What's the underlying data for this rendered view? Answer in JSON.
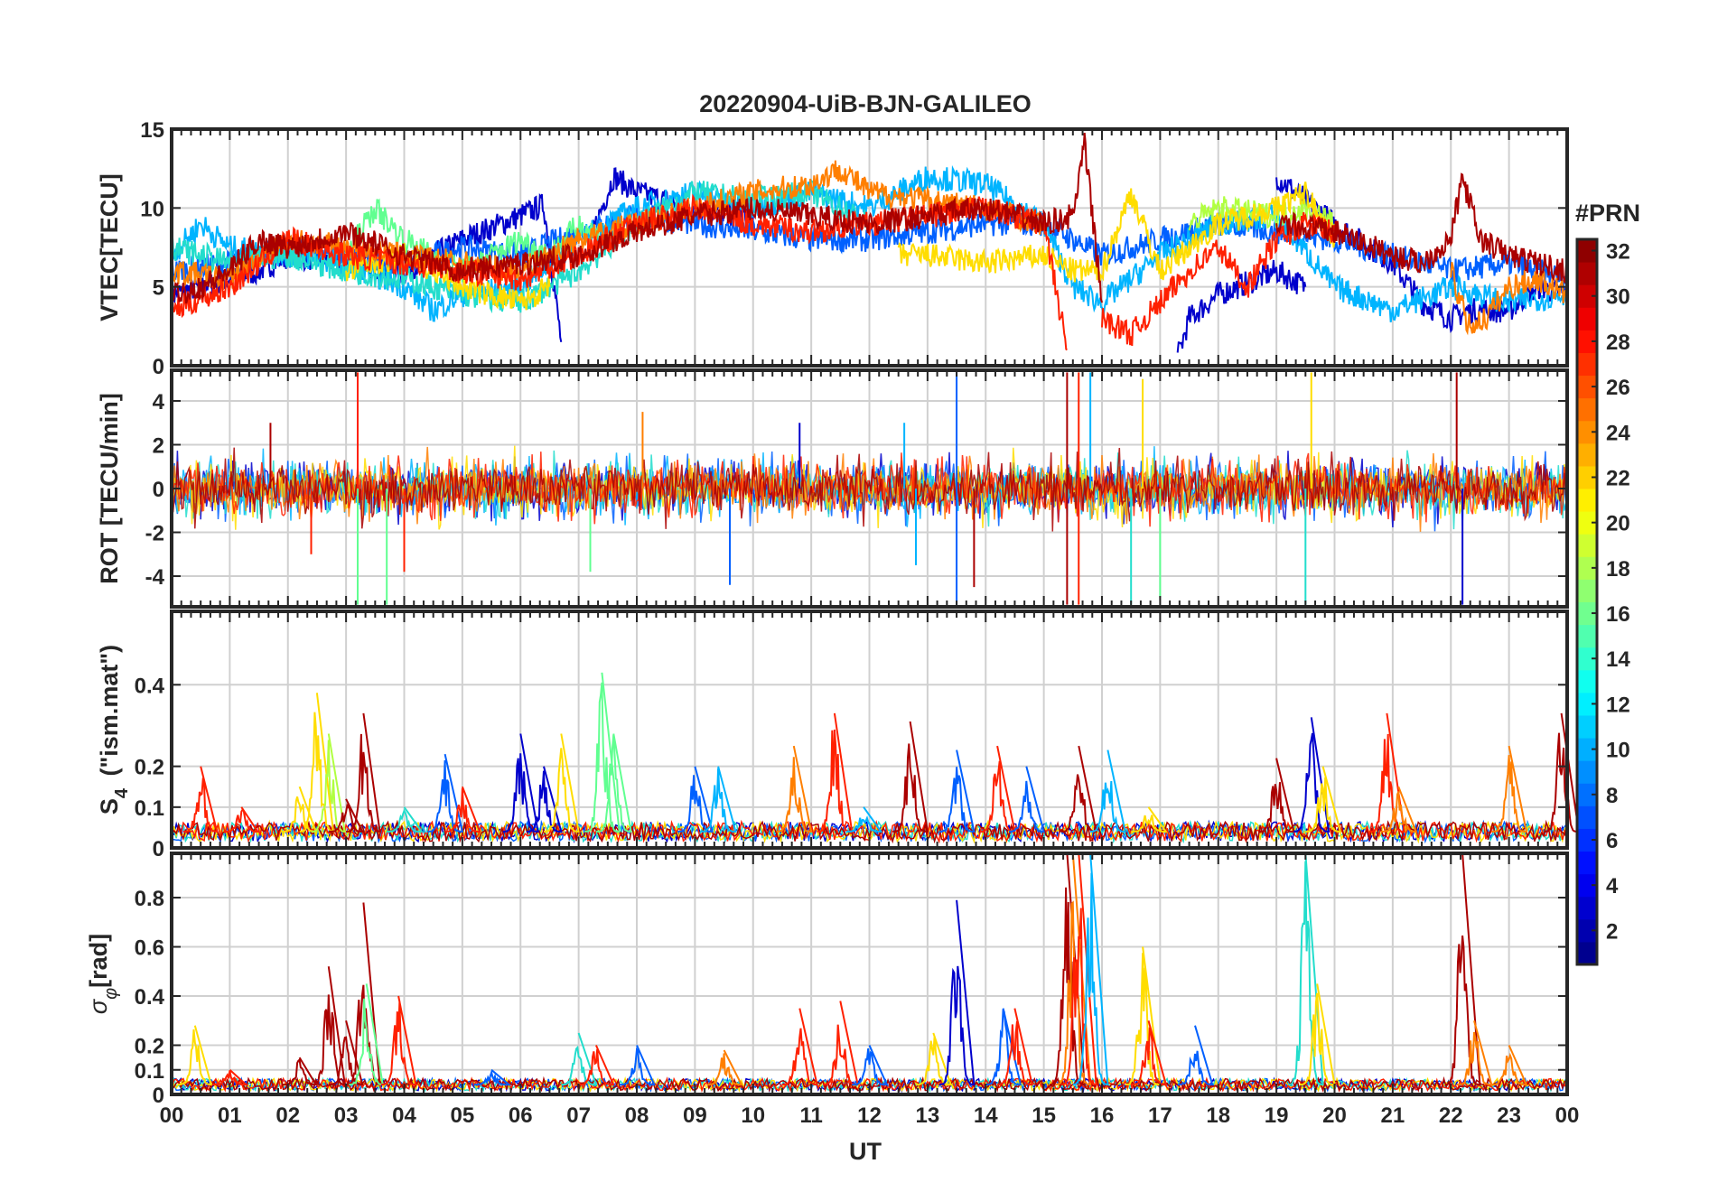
{
  "figure": {
    "title": "20220904-UiB-BJN-GALILEO",
    "x_axis_label": "UT",
    "x_tick_labels": [
      "00",
      "01",
      "02",
      "03",
      "04",
      "05",
      "06",
      "07",
      "08",
      "09",
      "10",
      "11",
      "12",
      "13",
      "14",
      "15",
      "16",
      "17",
      "18",
      "19",
      "20",
      "21",
      "22",
      "23",
      "00"
    ],
    "colorbar": {
      "label": "#PRN",
      "ticks": [
        "2",
        "4",
        "6",
        "8",
        "10",
        "12",
        "14",
        "16",
        "18",
        "20",
        "22",
        "24",
        "26",
        "28",
        "30",
        "32"
      ],
      "range": [
        1,
        32
      ],
      "colormap": "jet",
      "levels": 32
    }
  },
  "chart_data": [
    {
      "type": "line",
      "panel": "vtec",
      "ylabel": "VTEC[TECU]",
      "xlim": [
        0,
        24
      ],
      "ylim": [
        0,
        15
      ],
      "yticks": [
        0,
        5,
        10,
        15
      ],
      "ytick_labels": [
        "0",
        "5",
        "10",
        "15"
      ],
      "grid": true,
      "series": [
        {
          "prn": 3,
          "color": "#0000cc",
          "x": [
            0,
            0.5,
            1,
            1.5,
            2,
            3,
            4,
            5,
            6,
            6.4,
            6.7
          ],
          "y": [
            4.5,
            5,
            5.5,
            6,
            7,
            6.5,
            6,
            8,
            9.5,
            10.2,
            1.5
          ]
        },
        {
          "prn": 3,
          "color": "#0000cc",
          "x": [
            7.2,
            7.6,
            8,
            9,
            10
          ],
          "y": [
            8,
            12,
            11,
            10,
            9.5
          ]
        },
        {
          "prn": 3,
          "color": "#0000cc",
          "x": [
            17.3,
            17.5,
            18,
            19,
            19.5
          ],
          "y": [
            0.5,
            3,
            4.5,
            6,
            5
          ]
        },
        {
          "prn": 3,
          "color": "#0000cc",
          "x": [
            19,
            20,
            21,
            21.5,
            22,
            22.3,
            23,
            23.5,
            24
          ],
          "y": [
            12,
            9,
            6.5,
            4,
            3,
            3.5,
            3.5,
            5,
            4.5
          ]
        },
        {
          "prn": 7,
          "color": "#0060ff",
          "x": [
            0,
            1,
            2,
            3,
            4,
            5,
            6,
            7,
            8,
            9,
            10,
            11,
            12,
            13,
            14,
            15,
            15.5,
            16,
            17,
            18,
            19,
            20,
            21,
            22,
            23,
            24
          ],
          "y": [
            6,
            6.5,
            7.5,
            7,
            6.5,
            7.5,
            7,
            8.5,
            9.5,
            9,
            8.5,
            8,
            8,
            8.5,
            9,
            9,
            8,
            7,
            8,
            9,
            8.5,
            8,
            7,
            6,
            6.5,
            5.5
          ]
        },
        {
          "prn": 10,
          "color": "#00b4ff",
          "x": [
            0,
            0.5,
            1,
            2,
            3,
            4,
            4.5,
            5,
            6,
            7,
            8,
            9,
            10,
            11,
            12,
            13,
            14,
            15,
            15.5,
            16,
            17,
            18,
            19,
            20,
            21,
            22,
            23,
            24
          ],
          "y": [
            7,
            9,
            7.5,
            7,
            6.5,
            5,
            3.5,
            4.5,
            5,
            8,
            10,
            11,
            10,
            11,
            10,
            12,
            11.5,
            9,
            5,
            4,
            7,
            9,
            9.5,
            5,
            3.5,
            5,
            4,
            4.5
          ]
        },
        {
          "prn": 13,
          "color": "#22ddcc",
          "x": [
            0,
            1,
            2,
            3,
            4,
            5,
            6,
            7,
            8,
            9,
            10,
            11,
            12
          ],
          "y": [
            7.5,
            6.5,
            7,
            6,
            5.5,
            4.5,
            4,
            6,
            9,
            11,
            10.5,
            11,
            9
          ]
        },
        {
          "prn": 16,
          "color": "#60ff90",
          "x": [
            3,
            3.5,
            4,
            5,
            6,
            6.5,
            7,
            7.5
          ],
          "y": [
            7,
            10,
            8,
            6,
            8,
            7,
            9,
            8
          ]
        },
        {
          "prn": 18,
          "color": "#b0ff40",
          "x": [
            17.5,
            18,
            19,
            19.5,
            20
          ],
          "y": [
            9,
            10,
            9.5,
            10,
            9
          ]
        },
        {
          "prn": 20,
          "color": "#ffdd00",
          "x": [
            3,
            4,
            5,
            6,
            6.5
          ],
          "y": [
            6,
            7,
            5,
            4,
            5
          ]
        },
        {
          "prn": 20,
          "color": "#ffdd00",
          "x": [
            12.5,
            13,
            14,
            15,
            15.5,
            16,
            16.5,
            17,
            18,
            19,
            19.5,
            20
          ],
          "y": [
            7,
            7,
            6.5,
            7,
            6,
            6,
            11,
            6,
            9,
            10,
            11,
            8
          ]
        },
        {
          "prn": 24,
          "color": "#ff7f00",
          "x": [
            0,
            1,
            2,
            3,
            4,
            5,
            6,
            7,
            8,
            9,
            10,
            11,
            11.5,
            12,
            13,
            14,
            15
          ],
          "y": [
            6,
            5.5,
            8,
            7.5,
            7,
            6.5,
            6,
            8,
            9,
            10,
            11,
            11.5,
            12.5,
            11,
            10.5,
            10,
            9
          ]
        },
        {
          "prn": 24,
          "color": "#ff7f00",
          "x": [
            22,
            22.3,
            22.6,
            23,
            23.5,
            24
          ],
          "y": [
            6,
            2.5,
            3,
            5,
            5.5,
            4.5
          ]
        },
        {
          "prn": 28,
          "color": "#ff2000",
          "x": [
            0,
            1,
            2,
            3,
            4,
            5,
            6,
            7,
            8,
            9,
            10,
            11,
            12,
            13,
            14,
            15,
            15.4
          ],
          "y": [
            3.5,
            5,
            8,
            7,
            6.5,
            6,
            5.5,
            7,
            9,
            10,
            9,
            8.5,
            9,
            9.5,
            10,
            9,
            1
          ]
        },
        {
          "prn": 28,
          "color": "#ff2000",
          "x": [
            16,
            16.5,
            17,
            17.5,
            18,
            18.5,
            19,
            19.5,
            20
          ],
          "y": [
            3,
            2,
            4,
            6,
            7.5,
            5,
            8,
            9,
            8.5
          ]
        },
        {
          "prn": 31,
          "color": "#aa0000",
          "x": [
            0,
            0.5,
            1,
            1.5,
            2,
            3,
            4,
            5,
            6,
            7,
            8,
            9,
            10,
            11,
            12,
            13,
            14,
            15,
            15.5,
            15.7,
            16
          ],
          "y": [
            4.5,
            5,
            6,
            8,
            7.5,
            8.5,
            7,
            6,
            6.5,
            7,
            8.5,
            9.5,
            10,
            9.5,
            9,
            9.5,
            10,
            9,
            9.5,
            14,
            4
          ]
        },
        {
          "prn": 31,
          "color": "#aa0000",
          "x": [
            19,
            20,
            21,
            21.5,
            22,
            22.2,
            22.5,
            23,
            24
          ],
          "y": [
            9,
            8.5,
            7,
            6.5,
            8,
            12,
            8,
            7,
            6
          ]
        }
      ]
    },
    {
      "type": "line",
      "panel": "rot",
      "ylabel": "ROT [TECU/min]",
      "xlim": [
        0,
        24
      ],
      "ylim": [
        -5.4,
        5.4
      ],
      "yticks": [
        -4,
        -2,
        0,
        2,
        4
      ],
      "ytick_labels": [
        "-4",
        "-2",
        "0",
        "2",
        "4"
      ],
      "grid": true,
      "note": "dense noise around 0 for every PRN; spikes listed below",
      "spikes": [
        {
          "x": 1.7,
          "y": 3,
          "color": "#aa0000"
        },
        {
          "x": 2.4,
          "y": -3,
          "color": "#ff2000"
        },
        {
          "x": 3.2,
          "y": 5.3,
          "color": "#ff2000"
        },
        {
          "x": 3.2,
          "y": -5.3,
          "color": "#60ff90"
        },
        {
          "x": 3.7,
          "y": -5.3,
          "color": "#60ff90"
        },
        {
          "x": 4.0,
          "y": -3.8,
          "color": "#ff2000"
        },
        {
          "x": 7.2,
          "y": -3.8,
          "color": "#60ff90"
        },
        {
          "x": 8.1,
          "y": 3.5,
          "color": "#ff7f00"
        },
        {
          "x": 9.6,
          "y": -4.4,
          "color": "#0060ff"
        },
        {
          "x": 10.8,
          "y": 3,
          "color": "#0000cc"
        },
        {
          "x": 12.6,
          "y": 3,
          "color": "#00b4ff"
        },
        {
          "x": 12.8,
          "y": -3.5,
          "color": "#00b4ff"
        },
        {
          "x": 13.5,
          "y": 5.3,
          "color": "#0060ff"
        },
        {
          "x": 13.5,
          "y": -5.3,
          "color": "#0060ff"
        },
        {
          "x": 13.8,
          "y": -4.5,
          "color": "#aa0000"
        },
        {
          "x": 15.4,
          "y": 5.3,
          "color": "#aa0000"
        },
        {
          "x": 15.4,
          "y": -5.3,
          "color": "#aa0000"
        },
        {
          "x": 15.6,
          "y": 5.3,
          "color": "#ff2000"
        },
        {
          "x": 15.6,
          "y": -5.3,
          "color": "#ff2000"
        },
        {
          "x": 15.8,
          "y": 5.3,
          "color": "#00b4ff"
        },
        {
          "x": 16.5,
          "y": -5.3,
          "color": "#22ddcc"
        },
        {
          "x": 16.7,
          "y": 5,
          "color": "#ffdd00"
        },
        {
          "x": 17.0,
          "y": -5,
          "color": "#60ff90"
        },
        {
          "x": 19.5,
          "y": -5.3,
          "color": "#22ddcc"
        },
        {
          "x": 19.6,
          "y": 5.3,
          "color": "#ffdd00"
        },
        {
          "x": 22.1,
          "y": 5.3,
          "color": "#aa0000"
        },
        {
          "x": 22.2,
          "y": -5.3,
          "color": "#0000cc"
        }
      ]
    },
    {
      "type": "line",
      "panel": "s4",
      "ylabel": "S4 (\"ism.mat\")",
      "xlim": [
        0,
        24
      ],
      "ylim": [
        0,
        0.58
      ],
      "yticks": [
        0,
        0.1,
        0.2,
        0.4
      ],
      "ytick_labels": [
        "0",
        "0.1",
        "0.2",
        "0.4"
      ],
      "grid": true,
      "bursts": [
        {
          "x": 0.5,
          "y": 0.2,
          "color": "#ff2000"
        },
        {
          "x": 1.2,
          "y": 0.1,
          "color": "#ff2000"
        },
        {
          "x": 2.2,
          "y": 0.15,
          "color": "#ffdd00"
        },
        {
          "x": 2.5,
          "y": 0.38,
          "color": "#ffdd00"
        },
        {
          "x": 2.7,
          "y": 0.28,
          "color": "#b0ff40"
        },
        {
          "x": 3.0,
          "y": 0.12,
          "color": "#aa0000"
        },
        {
          "x": 3.3,
          "y": 0.33,
          "color": "#aa0000"
        },
        {
          "x": 4.0,
          "y": 0.1,
          "color": "#22ddcc"
        },
        {
          "x": 4.7,
          "y": 0.23,
          "color": "#0060ff"
        },
        {
          "x": 5.0,
          "y": 0.15,
          "color": "#ff2000"
        },
        {
          "x": 6.0,
          "y": 0.28,
          "color": "#0000cc"
        },
        {
          "x": 6.4,
          "y": 0.2,
          "color": "#0000cc"
        },
        {
          "x": 6.7,
          "y": 0.28,
          "color": "#ffdd00"
        },
        {
          "x": 7.4,
          "y": 0.43,
          "color": "#60ff90"
        },
        {
          "x": 7.6,
          "y": 0.28,
          "color": "#60ff90"
        },
        {
          "x": 9.0,
          "y": 0.2,
          "color": "#0060ff"
        },
        {
          "x": 9.4,
          "y": 0.2,
          "color": "#00b4ff"
        },
        {
          "x": 10.7,
          "y": 0.25,
          "color": "#ff7f00"
        },
        {
          "x": 11.4,
          "y": 0.33,
          "color": "#ff2000"
        },
        {
          "x": 11.9,
          "y": 0.1,
          "color": "#00b4ff"
        },
        {
          "x": 12.7,
          "y": 0.31,
          "color": "#aa0000"
        },
        {
          "x": 13.5,
          "y": 0.24,
          "color": "#0060ff"
        },
        {
          "x": 14.2,
          "y": 0.25,
          "color": "#ff2000"
        },
        {
          "x": 14.7,
          "y": 0.2,
          "color": "#0060ff"
        },
        {
          "x": 15.6,
          "y": 0.25,
          "color": "#aa0000"
        },
        {
          "x": 16.1,
          "y": 0.24,
          "color": "#00b4ff"
        },
        {
          "x": 16.8,
          "y": 0.1,
          "color": "#ffdd00"
        },
        {
          "x": 19.0,
          "y": 0.22,
          "color": "#aa0000"
        },
        {
          "x": 19.6,
          "y": 0.32,
          "color": "#0000cc"
        },
        {
          "x": 19.8,
          "y": 0.2,
          "color": "#ffdd00"
        },
        {
          "x": 20.9,
          "y": 0.33,
          "color": "#ff2000"
        },
        {
          "x": 21.1,
          "y": 0.15,
          "color": "#ff7f00"
        },
        {
          "x": 23.0,
          "y": 0.25,
          "color": "#ff7f00"
        },
        {
          "x": 23.9,
          "y": 0.33,
          "color": "#aa0000"
        }
      ]
    },
    {
      "type": "line",
      "panel": "sigma_phi",
      "ylabel": "σφ[rad]",
      "xlim": [
        0,
        24
      ],
      "ylim": [
        0,
        0.98
      ],
      "yticks": [
        0,
        0.1,
        0.2,
        0.4,
        0.6,
        0.8
      ],
      "ytick_labels": [
        "0",
        "0.1",
        "0.2",
        "0.4",
        "0.6",
        "0.8"
      ],
      "grid": true,
      "bursts": [
        {
          "x": 0.4,
          "y": 0.28,
          "color": "#ffdd00"
        },
        {
          "x": 1.0,
          "y": 0.1,
          "color": "#ff2000"
        },
        {
          "x": 2.2,
          "y": 0.15,
          "color": "#aa0000"
        },
        {
          "x": 2.7,
          "y": 0.52,
          "color": "#aa0000"
        },
        {
          "x": 3.0,
          "y": 0.3,
          "color": "#aa0000"
        },
        {
          "x": 3.3,
          "y": 0.78,
          "color": "#aa0000"
        },
        {
          "x": 3.35,
          "y": 0.45,
          "color": "#60ff90"
        },
        {
          "x": 3.9,
          "y": 0.4,
          "color": "#ff2000"
        },
        {
          "x": 5.5,
          "y": 0.1,
          "color": "#0060ff"
        },
        {
          "x": 7.0,
          "y": 0.25,
          "color": "#22ddcc"
        },
        {
          "x": 7.3,
          "y": 0.2,
          "color": "#ff2000"
        },
        {
          "x": 8.0,
          "y": 0.2,
          "color": "#0060ff"
        },
        {
          "x": 9.5,
          "y": 0.18,
          "color": "#ff7f00"
        },
        {
          "x": 10.8,
          "y": 0.35,
          "color": "#ff2000"
        },
        {
          "x": 11.5,
          "y": 0.38,
          "color": "#ff2000"
        },
        {
          "x": 12.0,
          "y": 0.2,
          "color": "#0060ff"
        },
        {
          "x": 13.1,
          "y": 0.25,
          "color": "#ffdd00"
        },
        {
          "x": 13.5,
          "y": 0.79,
          "color": "#0000cc"
        },
        {
          "x": 14.3,
          "y": 0.35,
          "color": "#0060ff"
        },
        {
          "x": 14.5,
          "y": 0.35,
          "color": "#ff2000"
        },
        {
          "x": 15.4,
          "y": 0.98,
          "color": "#aa0000"
        },
        {
          "x": 15.5,
          "y": 0.98,
          "color": "#ff7f00"
        },
        {
          "x": 15.6,
          "y": 0.98,
          "color": "#ff2000"
        },
        {
          "x": 15.8,
          "y": 0.98,
          "color": "#00b4ff"
        },
        {
          "x": 16.7,
          "y": 0.6,
          "color": "#ffdd00"
        },
        {
          "x": 16.8,
          "y": 0.3,
          "color": "#ff2000"
        },
        {
          "x": 17.6,
          "y": 0.28,
          "color": "#0060ff"
        },
        {
          "x": 19.5,
          "y": 0.98,
          "color": "#22ddcc"
        },
        {
          "x": 19.7,
          "y": 0.45,
          "color": "#ffdd00"
        },
        {
          "x": 22.2,
          "y": 0.98,
          "color": "#aa0000"
        },
        {
          "x": 22.4,
          "y": 0.3,
          "color": "#ff7f00"
        },
        {
          "x": 23.0,
          "y": 0.2,
          "color": "#ff7f00"
        }
      ]
    }
  ]
}
